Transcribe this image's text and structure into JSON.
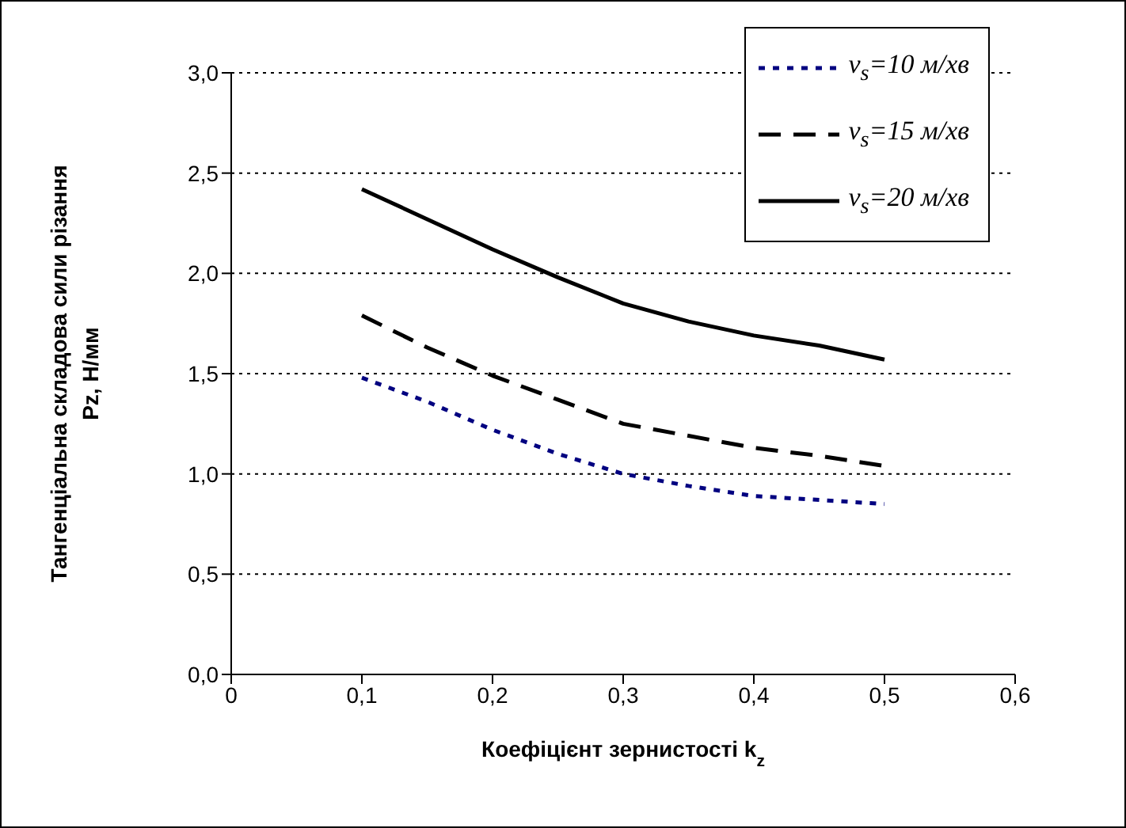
{
  "chart_data": {
    "type": "line",
    "xlabel": "Коефіцієнт зернистості k$_{z}$",
    "ylabel": "Тангенціальна складова сили різання\nPz, Н/мм",
    "x": [
      0.1,
      0.15,
      0.2,
      0.25,
      0.3,
      0.35,
      0.4,
      0.45,
      0.5
    ],
    "series": [
      {
        "name": "v$_{s}$=10 м/хв",
        "color": "#000080",
        "line_style": "dotted",
        "values": [
          1.48,
          1.36,
          1.22,
          1.1,
          1.0,
          0.94,
          0.89,
          0.87,
          0.85
        ]
      },
      {
        "name": "v$_{s}$=15 м/хв",
        "color": "#000000",
        "line_style": "dashed",
        "values": [
          1.79,
          1.63,
          1.49,
          1.37,
          1.25,
          1.19,
          1.13,
          1.09,
          1.04
        ]
      },
      {
        "name": "v$_{s}$=20 м/хв",
        "color": "#000000",
        "line_style": "solid",
        "values": [
          2.42,
          2.27,
          2.12,
          1.98,
          1.85,
          1.76,
          1.69,
          1.64,
          1.57
        ]
      }
    ],
    "xlim": [
      0,
      0.6
    ],
    "xticks": [
      {
        "value": 0,
        "label": "0"
      },
      {
        "value": 0.1,
        "label": "0,1"
      },
      {
        "value": 0.2,
        "label": "0,2"
      },
      {
        "value": 0.3,
        "label": "0,3"
      },
      {
        "value": 0.4,
        "label": "0,4"
      },
      {
        "value": 0.5,
        "label": "0,5"
      },
      {
        "value": 0.6,
        "label": "0,6"
      }
    ],
    "ylim": [
      0,
      3
    ],
    "yticks": [
      {
        "value": 0,
        "label": "0,0"
      },
      {
        "value": 0.5,
        "label": "0,5"
      },
      {
        "value": 1,
        "label": "1,0"
      },
      {
        "value": 1.5,
        "label": "1,5"
      },
      {
        "value": 2,
        "label": "2,0"
      },
      {
        "value": 2.5,
        "label": "2,5"
      },
      {
        "value": 3,
        "label": "3,0"
      }
    ],
    "grid": "y",
    "legend": "top right",
    "marker": "none"
  }
}
